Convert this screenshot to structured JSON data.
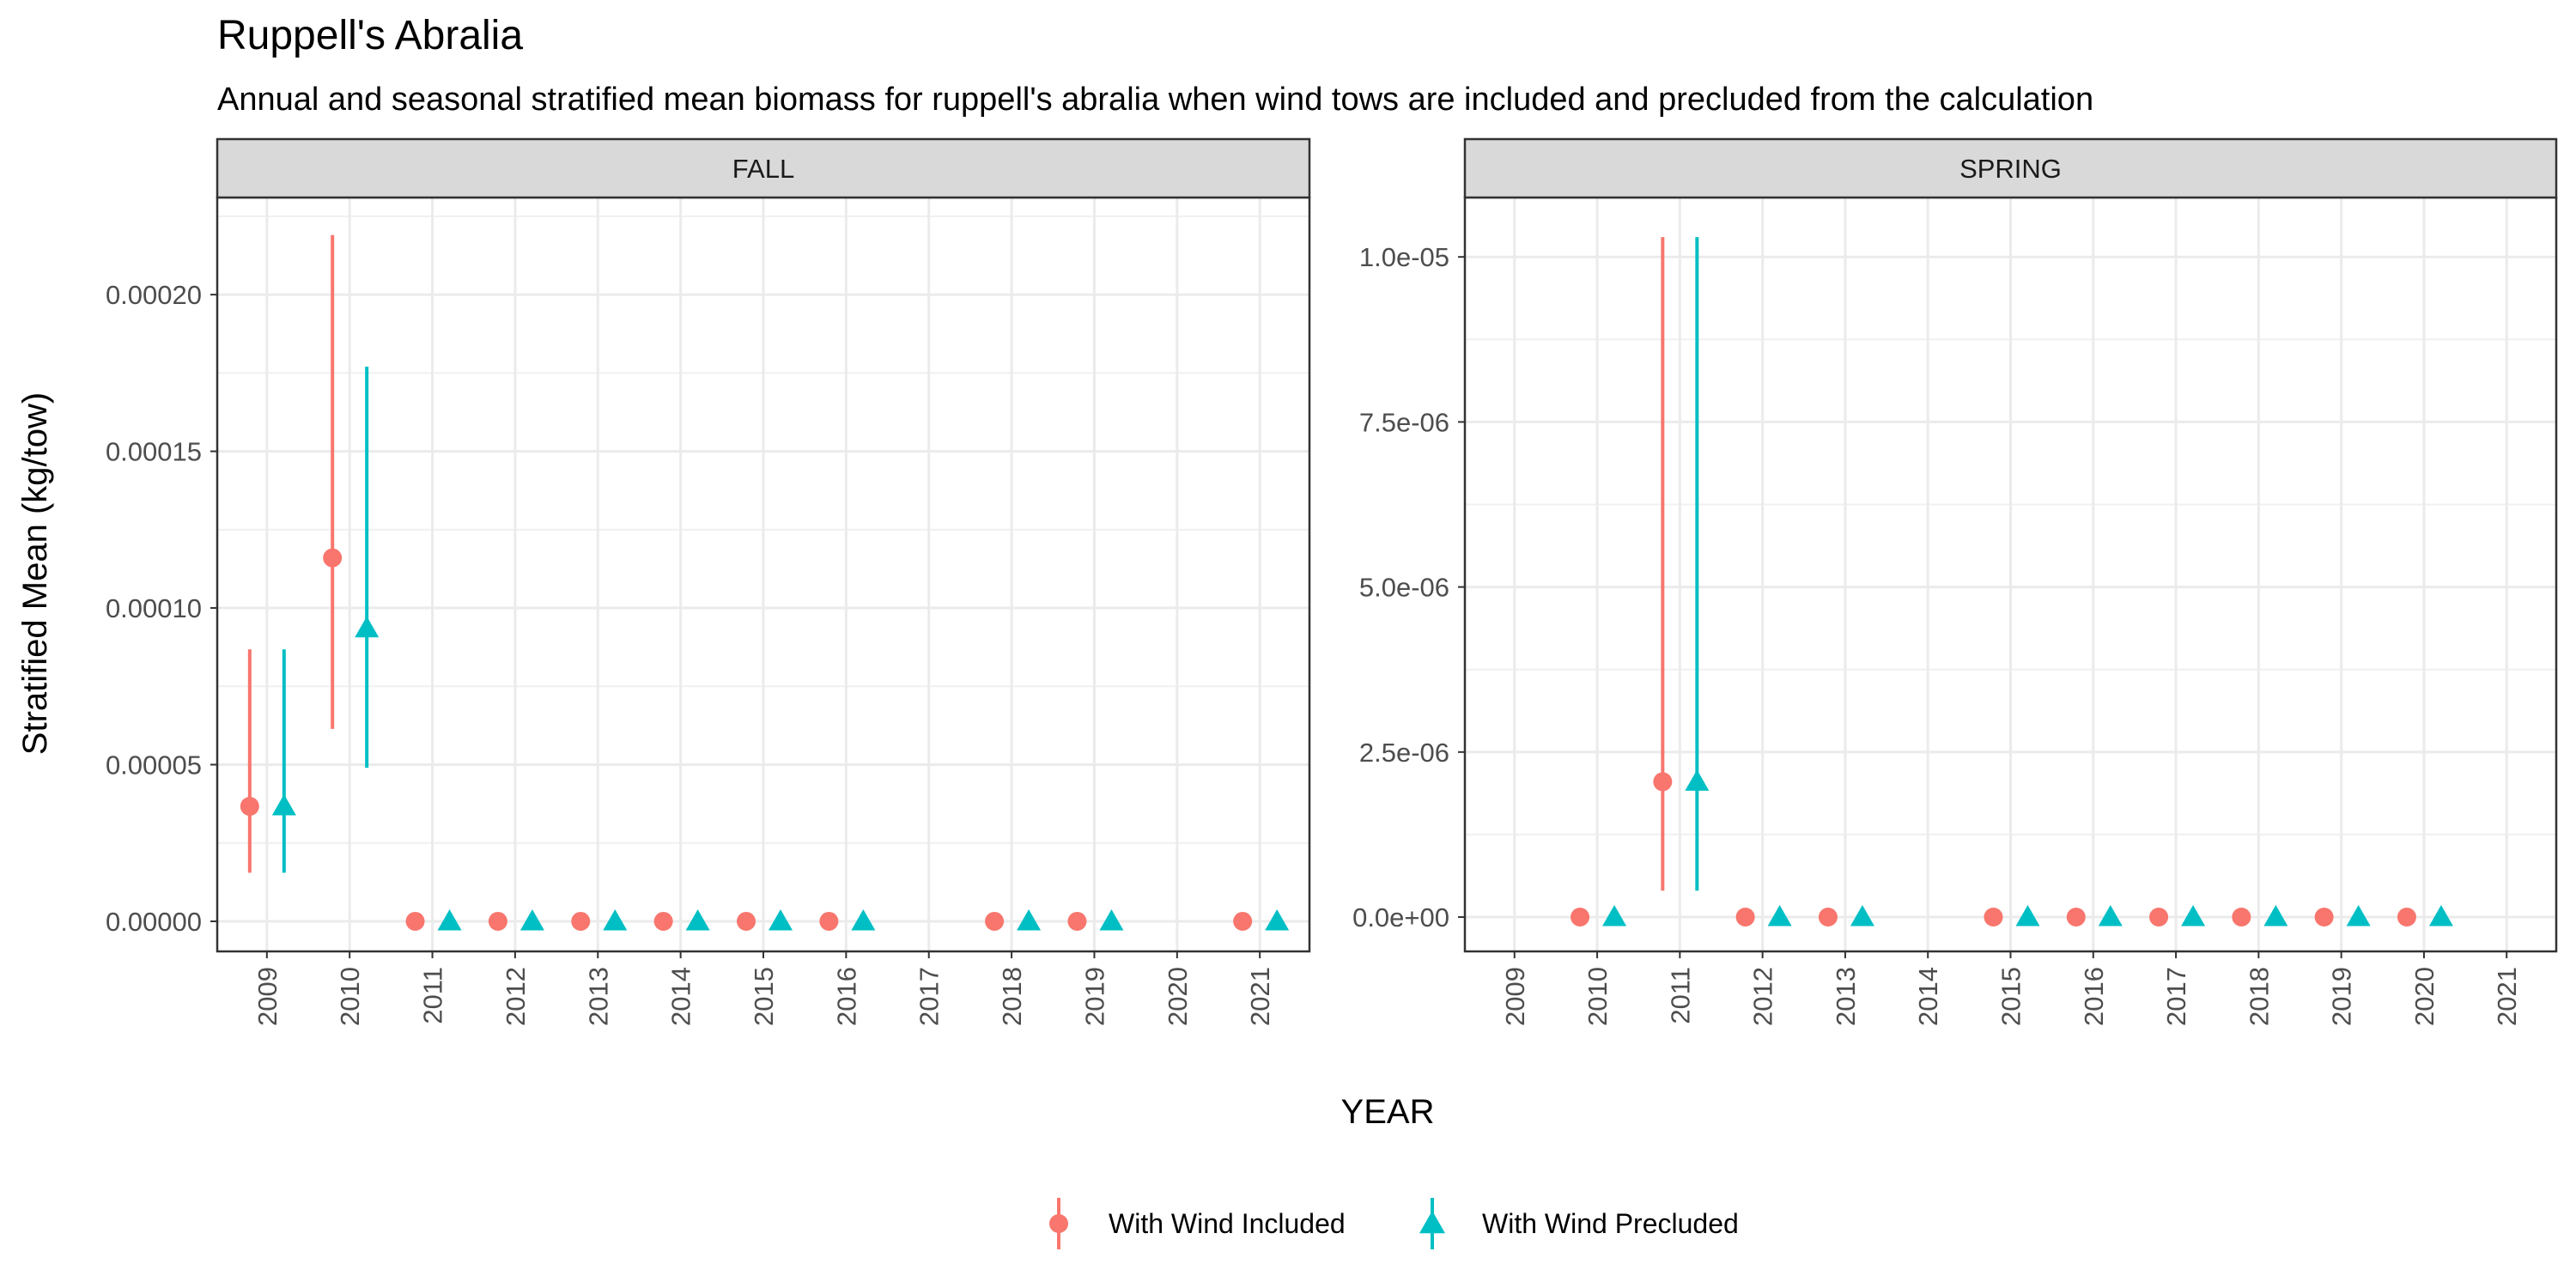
{
  "chart_data": {
    "type": "scatter",
    "title": "Ruppell's Abralia",
    "subtitle": "Annual and seasonal stratified mean biomass for ruppell's abralia when wind tows are included and precluded from the calculation",
    "xlabel": "YEAR",
    "ylabel": "Stratified Mean (kg/tow)",
    "grid": true,
    "legend_position": "bottom",
    "years": [
      "2009",
      "2010",
      "2011",
      "2012",
      "2013",
      "2014",
      "2015",
      "2016",
      "2017",
      "2018",
      "2019",
      "2020",
      "2021"
    ],
    "colors": {
      "With Wind Included": "#F8766D",
      "With Wind Precluded": "#00BFC4"
    },
    "markers": {
      "With Wind Included": "circle",
      "With Wind Precluded": "triangle"
    },
    "legend": [
      "With Wind Included",
      "With Wind Precluded"
    ],
    "panels": [
      {
        "name": "FALL",
        "ylim": [
          -9.6e-06,
          0.000231
        ],
        "yticks": [
          0,
          5e-05,
          0.0001,
          0.00015,
          0.0002
        ],
        "ytick_labels": [
          "0.00000",
          "0.00005",
          "0.00010",
          "0.00015",
          "0.00020"
        ],
        "series": [
          {
            "name": "With Wind Included",
            "points": [
              {
                "year": "2009",
                "y": 3.67e-05,
                "lo": 1.55e-05,
                "hi": 8.68e-05
              },
              {
                "year": "2010",
                "y": 0.000116,
                "lo": 6.14e-05,
                "hi": 0.000219
              },
              {
                "year": "2011",
                "y": 0
              },
              {
                "year": "2012",
                "y": 0
              },
              {
                "year": "2013",
                "y": 0
              },
              {
                "year": "2014",
                "y": 0
              },
              {
                "year": "2015",
                "y": 0
              },
              {
                "year": "2016",
                "y": 0
              },
              {
                "year": "2018",
                "y": 0
              },
              {
                "year": "2019",
                "y": 0
              },
              {
                "year": "2021",
                "y": 0
              }
            ]
          },
          {
            "name": "With Wind Precluded",
            "points": [
              {
                "year": "2009",
                "y": 3.67e-05,
                "lo": 1.55e-05,
                "hi": 8.68e-05
              },
              {
                "year": "2010",
                "y": 9.35e-05,
                "lo": 4.9e-05,
                "hi": 0.000177
              },
              {
                "year": "2011",
                "y": 0
              },
              {
                "year": "2012",
                "y": 0
              },
              {
                "year": "2013",
                "y": 0
              },
              {
                "year": "2014",
                "y": 0
              },
              {
                "year": "2015",
                "y": 0
              },
              {
                "year": "2016",
                "y": 0
              },
              {
                "year": "2018",
                "y": 0
              },
              {
                "year": "2019",
                "y": 0
              },
              {
                "year": "2021",
                "y": 0
              }
            ]
          }
        ]
      },
      {
        "name": "SPRING",
        "ylim": [
          -5.2e-07,
          1.09e-05
        ],
        "yticks": [
          0,
          2.5e-06,
          5e-06,
          7.5e-06,
          1e-05
        ],
        "ytick_labels": [
          "0.0e+00",
          "2.5e-06",
          "5.0e-06",
          "7.5e-06",
          "1.0e-05"
        ],
        "series": [
          {
            "name": "With Wind Included",
            "points": [
              {
                "year": "2010",
                "y": 0
              },
              {
                "year": "2011",
                "y": 2.05e-06,
                "lo": 4e-07,
                "hi": 1.03e-05
              },
              {
                "year": "2012",
                "y": 0
              },
              {
                "year": "2013",
                "y": 0
              },
              {
                "year": "2015",
                "y": 0
              },
              {
                "year": "2016",
                "y": 0
              },
              {
                "year": "2017",
                "y": 0
              },
              {
                "year": "2018",
                "y": 0
              },
              {
                "year": "2019",
                "y": 0
              },
              {
                "year": "2020",
                "y": 0
              }
            ]
          },
          {
            "name": "With Wind Precluded",
            "points": [
              {
                "year": "2010",
                "y": 0
              },
              {
                "year": "2011",
                "y": 2.05e-06,
                "lo": 4e-07,
                "hi": 1.03e-05
              },
              {
                "year": "2012",
                "y": 0
              },
              {
                "year": "2013",
                "y": 0
              },
              {
                "year": "2015",
                "y": 0
              },
              {
                "year": "2016",
                "y": 0
              },
              {
                "year": "2017",
                "y": 0
              },
              {
                "year": "2018",
                "y": 0
              },
              {
                "year": "2019",
                "y": 0
              },
              {
                "year": "2020",
                "y": 0
              }
            ]
          }
        ]
      }
    ]
  }
}
